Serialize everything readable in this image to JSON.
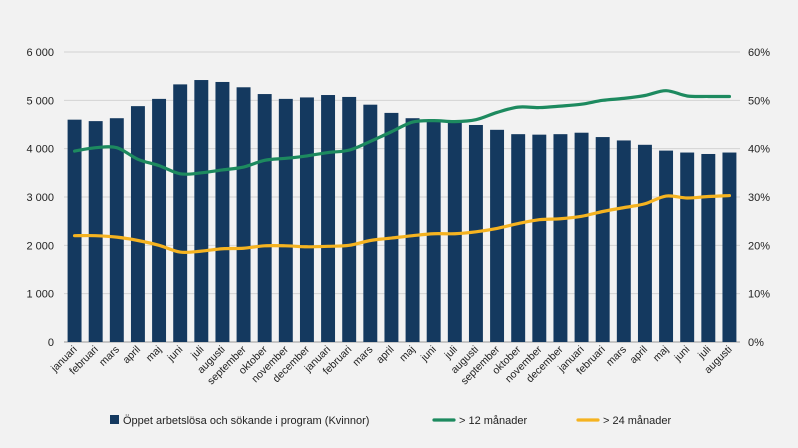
{
  "chart_data": {
    "type": "bar+line",
    "title": "",
    "categories": [
      "januari",
      "februari",
      "mars",
      "april",
      "maj",
      "juni",
      "juli",
      "augusti",
      "september",
      "oktober",
      "november",
      "december",
      "januari",
      "februari",
      "mars",
      "april",
      "maj",
      "juni",
      "juli",
      "augusti",
      "september",
      "oktober",
      "november",
      "december",
      "januari",
      "februari",
      "mars",
      "april",
      "maj",
      "juni",
      "juli",
      "augusti"
    ],
    "left_axis": {
      "min": 0,
      "max": 6000,
      "step": 1000,
      "tick_labels": [
        "0",
        "1 000",
        "2 000",
        "3 000",
        "4 000",
        "5 000",
        "6 000"
      ]
    },
    "right_axis": {
      "min": 0,
      "max": 60,
      "step": 10,
      "tick_labels": [
        "0%",
        "10%",
        "20%",
        "30%",
        "40%",
        "50%",
        "60%"
      ]
    },
    "grid": true,
    "legend_position": "bottom",
    "series": [
      {
        "name": "Öppet arbetslösa och sökande i program (Kvinnor)",
        "type": "bar",
        "axis": "left",
        "color": "#14395f",
        "values": [
          4600,
          4570,
          4630,
          4880,
          5030,
          5330,
          5420,
          5380,
          5270,
          5130,
          5030,
          5060,
          5110,
          5070,
          4910,
          4740,
          4630,
          4580,
          4540,
          4490,
          4390,
          4300,
          4290,
          4300,
          4330,
          4240,
          4170,
          4080,
          3960,
          3920,
          3890,
          3920
        ]
      },
      {
        "name": "> 12 månader",
        "type": "line",
        "axis": "right",
        "color": "#1d8a5f",
        "values": [
          39.5,
          40.2,
          40.2,
          37.8,
          36.5,
          34.8,
          35.0,
          35.6,
          36.2,
          37.6,
          38.0,
          38.5,
          39.2,
          39.7,
          41.5,
          43.5,
          45.5,
          45.8,
          45.6,
          46.0,
          47.5,
          48.6,
          48.5,
          48.8,
          49.2,
          50.0,
          50.4,
          51.0,
          52.0,
          50.9,
          50.8,
          50.8
        ]
      },
      {
        "name": "> 24 månader",
        "type": "line",
        "axis": "right",
        "color": "#f5b320",
        "values": [
          22.0,
          22.0,
          21.7,
          21.0,
          20.0,
          18.6,
          18.8,
          19.3,
          19.4,
          19.9,
          19.9,
          19.7,
          19.8,
          20.0,
          21.0,
          21.5,
          22.0,
          22.4,
          22.4,
          22.8,
          23.5,
          24.5,
          25.3,
          25.5,
          26.0,
          27.0,
          27.8,
          28.6,
          30.2,
          29.8,
          30.1,
          30.3
        ]
      }
    ]
  }
}
